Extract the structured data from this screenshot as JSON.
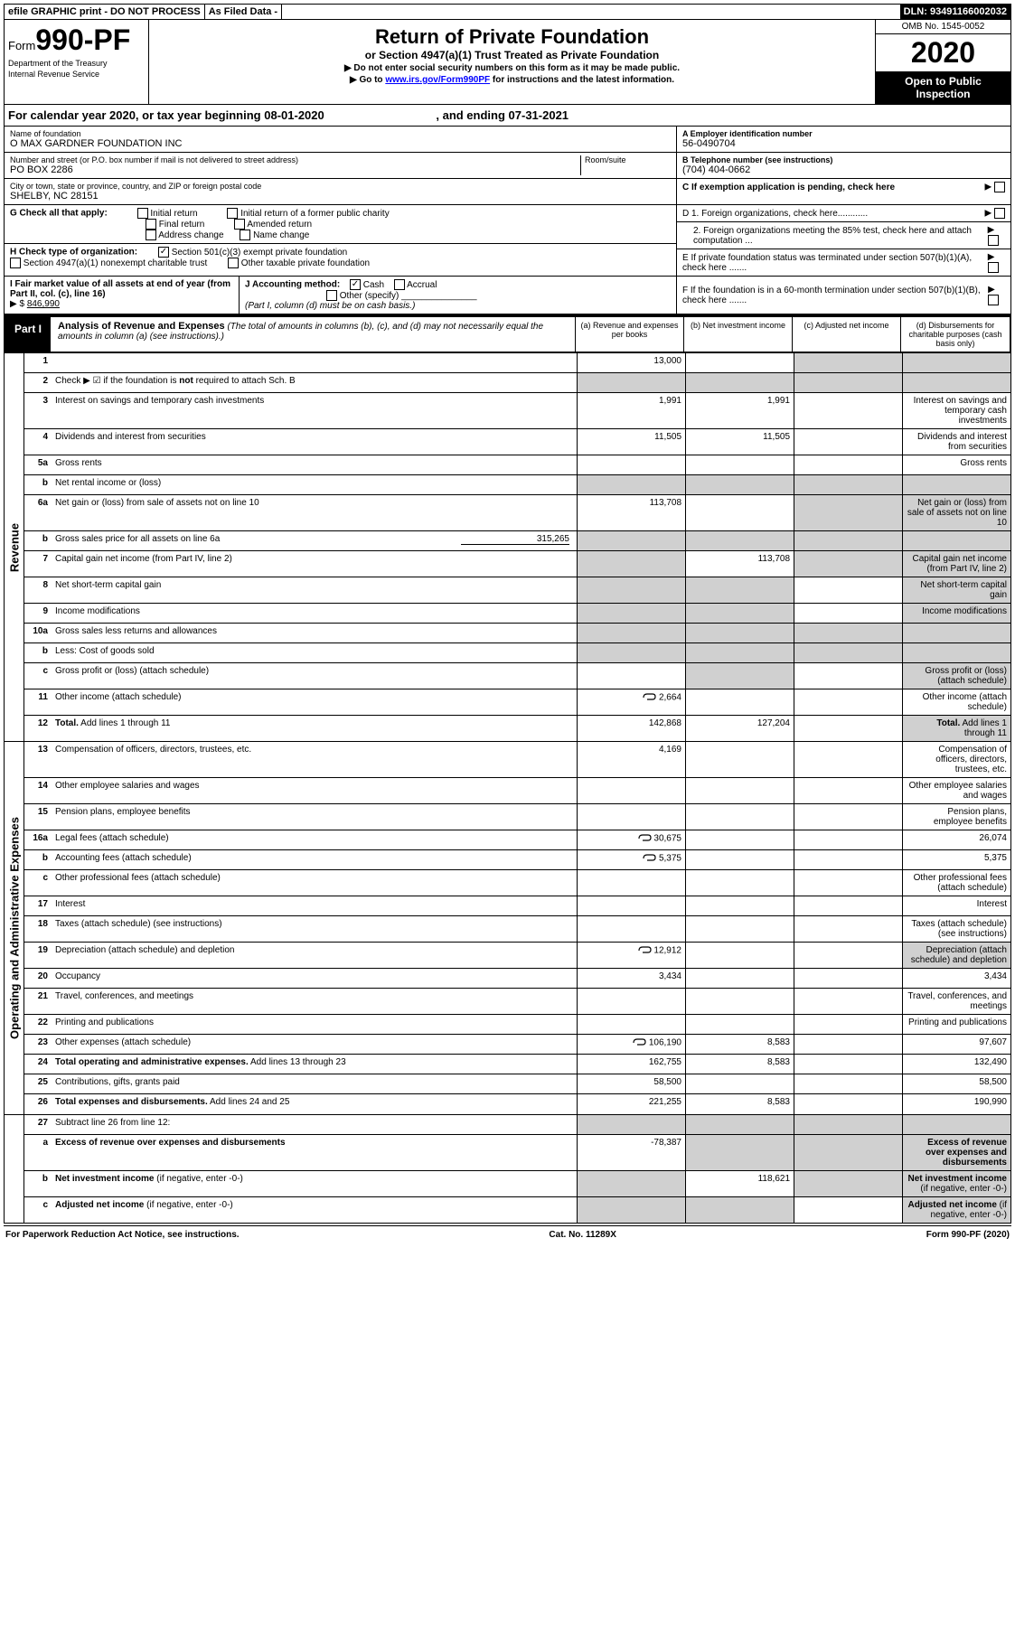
{
  "top": {
    "efile": "efile GRAPHIC print - DO NOT PROCESS",
    "asfiled": "As Filed Data -",
    "dln": "DLN: 93491166002032"
  },
  "header": {
    "form_prefix": "Form",
    "form_num": "990-PF",
    "dept": "Department of the Treasury",
    "irs": "Internal Revenue Service",
    "title": "Return of Private Foundation",
    "subtitle": "or Section 4947(a)(1) Trust Treated as Private Foundation",
    "note1": "Do not enter social security numbers on this form as it may be made public.",
    "note2_pre": "Go to ",
    "note2_link": "www.irs.gov/Form990PF",
    "note2_post": " for instructions and the latest information.",
    "omb": "OMB No. 1545-0052",
    "year": "2020",
    "open": "Open to Public Inspection"
  },
  "calendar": {
    "text_pre": "For calendar year 2020, or tax year beginning ",
    "begin": "08-01-2020",
    "text_mid": ", and ending ",
    "end": "07-31-2021"
  },
  "foundation": {
    "name_lbl": "Name of foundation",
    "name": "O MAX GARDNER FOUNDATION INC",
    "addr_lbl": "Number and street (or P.O. box number if mail is not delivered to street address)",
    "addr": "PO BOX 2286",
    "room_lbl": "Room/suite",
    "city_lbl": "City or town, state or province, country, and ZIP or foreign postal code",
    "city": "SHELBY, NC  28151",
    "ein_lbl": "A Employer identification number",
    "ein": "56-0490704",
    "phone_lbl": "B Telephone number (see instructions)",
    "phone": "(704) 404-0662",
    "c_lbl": "C If exemption application is pending, check here"
  },
  "g": {
    "label": "G Check all that apply:",
    "o1": "Initial return",
    "o2": "Initial return of a former public charity",
    "o3": "Final return",
    "o4": "Amended return",
    "o5": "Address change",
    "o6": "Name change"
  },
  "d": {
    "d1": "D 1. Foreign organizations, check here............",
    "d2": "2. Foreign organizations meeting the 85% test, check here and attach computation ...",
    "e": "E  If private foundation status was terminated under section 507(b)(1)(A), check here .......",
    "f": "F  If the foundation is in a 60-month termination under section 507(b)(1)(B), check here ......."
  },
  "h": {
    "label": "H Check type of organization:",
    "o1": "Section 501(c)(3) exempt private foundation",
    "o2": "Section 4947(a)(1) nonexempt charitable trust",
    "o3": "Other taxable private foundation"
  },
  "i": {
    "label": "I Fair market value of all assets at end of year (from Part II, col. (c), line 16)",
    "arrow": "▶ $",
    "val": "846,990"
  },
  "j": {
    "label": "J Accounting method:",
    "o1": "Cash",
    "o2": "Accrual",
    "o3": "Other (specify)",
    "note": "(Part I, column (d) must be on cash basis.)"
  },
  "part1": {
    "label": "Part I",
    "title": "Analysis of Revenue and Expenses",
    "desc": "(The total of amounts in columns (b), (c), and (d) may not necessarily equal the amounts in column (a) (see instructions).)",
    "col_a": "(a)   Revenue and expenses per books",
    "col_b": "(b)  Net investment income",
    "col_c": "(c)  Adjusted net income",
    "col_d": "(d)  Disbursements for charitable purposes (cash basis only)"
  },
  "revenue_label": "Revenue",
  "expenses_label": "Operating and Administrative Expenses",
  "rows": [
    {
      "n": "1",
      "d": "",
      "a": "13,000",
      "b": "",
      "c": "",
      "shade_c": true,
      "shade_d": true
    },
    {
      "n": "2",
      "d": "Check ▶ ☑ if the foundation is <b>not</b> required to attach Sch. B",
      "shade_all": true
    },
    {
      "n": "3",
      "d": "Interest on savings and temporary cash investments",
      "a": "1,991",
      "b": "1,991"
    },
    {
      "n": "4",
      "d": "Dividends and interest from securities",
      "a": "11,505",
      "b": "11,505"
    },
    {
      "n": "5a",
      "d": "Gross rents"
    },
    {
      "n": "b",
      "d": "Net rental income or (loss)",
      "shade_all": true
    },
    {
      "n": "6a",
      "d": "Net gain or (loss) from sale of assets not on line 10",
      "a": "113,708",
      "shade_c": true,
      "shade_d": true
    },
    {
      "n": "b",
      "d": "Gross sales price for all assets on line 6a",
      "extra": "315,265",
      "shade_all": true
    },
    {
      "n": "7",
      "d": "Capital gain net income (from Part IV, line 2)",
      "b": "113,708",
      "shade_a": true,
      "shade_c": true,
      "shade_d": true
    },
    {
      "n": "8",
      "d": "Net short-term capital gain",
      "shade_a": true,
      "shade_b": true,
      "shade_d": true
    },
    {
      "n": "9",
      "d": "Income modifications",
      "shade_a": true,
      "shade_b": true,
      "shade_d": true
    },
    {
      "n": "10a",
      "d": "Gross sales less returns and allowances",
      "shade_all": true
    },
    {
      "n": "b",
      "d": "Less: Cost of goods sold",
      "shade_all": true
    },
    {
      "n": "c",
      "d": "Gross profit or (loss) (attach schedule)",
      "shade_b": true,
      "shade_d": true
    },
    {
      "n": "11",
      "d": "Other income (attach schedule)",
      "a": "2,664",
      "icon": true
    },
    {
      "n": "12",
      "d": "<b>Total.</b> Add lines 1 through 11",
      "a": "142,868",
      "b": "127,204",
      "shade_d": true
    }
  ],
  "exp_rows": [
    {
      "n": "13",
      "d": "Compensation of officers, directors, trustees, etc.",
      "a": "4,169"
    },
    {
      "n": "14",
      "d": "Other employee salaries and wages"
    },
    {
      "n": "15",
      "d": "Pension plans, employee benefits"
    },
    {
      "n": "16a",
      "d": "Legal fees (attach schedule)",
      "a": "30,675",
      "dcol": "26,074",
      "icon": true
    },
    {
      "n": "b",
      "d": "Accounting fees (attach schedule)",
      "a": "5,375",
      "dcol": "5,375",
      "icon": true
    },
    {
      "n": "c",
      "d": "Other professional fees (attach schedule)"
    },
    {
      "n": "17",
      "d": "Interest"
    },
    {
      "n": "18",
      "d": "Taxes (attach schedule) (see instructions)"
    },
    {
      "n": "19",
      "d": "Depreciation (attach schedule) and depletion",
      "a": "12,912",
      "icon": true,
      "shade_d": true
    },
    {
      "n": "20",
      "d": "Occupancy",
      "a": "3,434",
      "dcol": "3,434"
    },
    {
      "n": "21",
      "d": "Travel, conferences, and meetings"
    },
    {
      "n": "22",
      "d": "Printing and publications"
    },
    {
      "n": "23",
      "d": "Other expenses (attach schedule)",
      "a": "106,190",
      "b": "8,583",
      "dcol": "97,607",
      "icon": true
    },
    {
      "n": "24",
      "d": "<b>Total operating and administrative expenses.</b> Add lines 13 through 23",
      "a": "162,755",
      "b": "8,583",
      "dcol": "132,490"
    },
    {
      "n": "25",
      "d": "Contributions, gifts, grants paid",
      "a": "58,500",
      "dcol": "58,500"
    },
    {
      "n": "26",
      "d": "<b>Total expenses and disbursements.</b> Add lines 24 and 25",
      "a": "221,255",
      "b": "8,583",
      "dcol": "190,990"
    }
  ],
  "bottom_rows": [
    {
      "n": "27",
      "d": "Subtract line 26 from line 12:",
      "shade_all": true
    },
    {
      "n": "a",
      "d": "<b>Excess of revenue over expenses and disbursements</b>",
      "a": "-78,387",
      "shade_b": true,
      "shade_c": true,
      "shade_d": true
    },
    {
      "n": "b",
      "d": "<b>Net investment income</b> (if negative, enter -0-)",
      "b": "118,621",
      "shade_a": true,
      "shade_c": true,
      "shade_d": true
    },
    {
      "n": "c",
      "d": "<b>Adjusted net income</b> (if negative, enter -0-)",
      "shade_a": true,
      "shade_b": true,
      "shade_d": true
    }
  ],
  "footer": {
    "left": "For Paperwork Reduction Act Notice, see instructions.",
    "mid": "Cat. No. 11289X",
    "right": "Form 990-PF (2020)"
  }
}
